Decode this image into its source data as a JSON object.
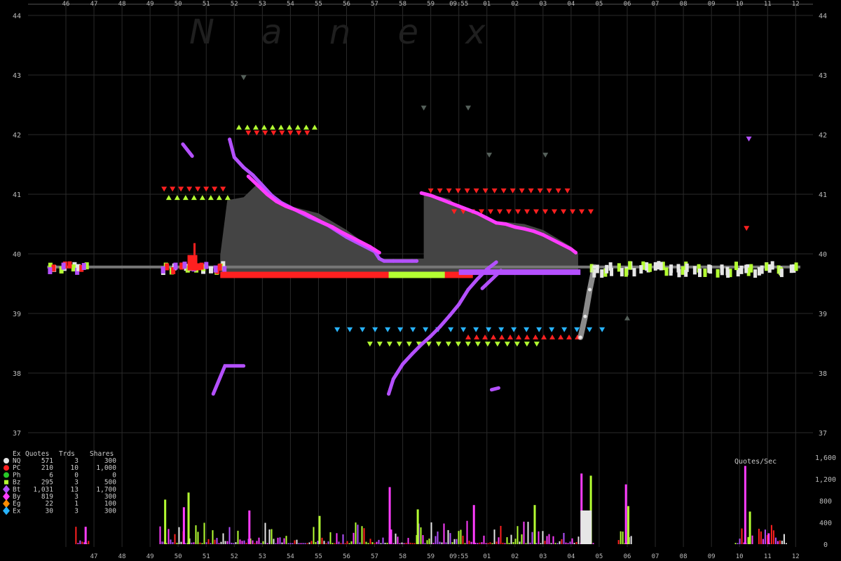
{
  "watermark": "N a n e x",
  "colors": {
    "background": "#000000",
    "grid": "#2a2a2a",
    "shading": "#444444",
    "NQ": "#e6e6e6",
    "PC": "#ff2020",
    "Ph": "#28c828",
    "Bz": "#b4ff32",
    "Bt": "#b450ff",
    "By": "#ff3cff",
    "Eg": "#ff8c00",
    "Ex": "#28b4ff",
    "ref": "#55605a"
  },
  "legend": {
    "headers": [
      "Ex",
      "Quotes",
      "Trds",
      "Shares"
    ],
    "rows": [
      {
        "ex": "NQ",
        "quotes": "571",
        "trds": "3",
        "shares": "300",
        "color": "#e6e6e6",
        "shape": "circle"
      },
      {
        "ex": "PC",
        "quotes": "210",
        "trds": "10",
        "shares": "1,000",
        "color": "#ff2020",
        "shape": "circle"
      },
      {
        "ex": "Ph",
        "quotes": "6",
        "trds": "0",
        "shares": "0",
        "color": "#28c828",
        "shape": "circle"
      },
      {
        "ex": "Bz",
        "quotes": "295",
        "trds": "3",
        "shares": "500",
        "color": "#b4ff32",
        "shape": "square"
      },
      {
        "ex": "Bt",
        "quotes": "1,031",
        "trds": "13",
        "shares": "1,700",
        "color": "#b450ff",
        "shape": "diamond"
      },
      {
        "ex": "By",
        "quotes": "819",
        "trds": "3",
        "shares": "300",
        "color": "#ff3cff",
        "shape": "diamond"
      },
      {
        "ex": "Eg",
        "quotes": "22",
        "trds": "1",
        "shares": "100",
        "color": "#ff8c00",
        "shape": "diamond"
      },
      {
        "ex": "Ex",
        "quotes": "30",
        "trds": "3",
        "shares": "300",
        "color": "#28b4ff",
        "shape": "diamond"
      }
    ]
  },
  "chart_data": [
    {
      "type": "line",
      "title": "",
      "xlabel": "",
      "ylabel": "",
      "ylim": [
        37,
        44
      ],
      "grid": true,
      "top_x_ticks": [
        "46",
        "47",
        "48",
        "49",
        "50",
        "51",
        "52",
        "53",
        "54",
        "55",
        "56",
        "57",
        "58",
        "59",
        "09:55",
        "01",
        "02",
        "03",
        "04",
        "05",
        "06",
        "07",
        "08",
        "09",
        "10",
        "11",
        "12"
      ],
      "y_ticks": [
        "44",
        "43",
        "42",
        "41",
        "40",
        "39",
        "38",
        "37"
      ],
      "series": [
        {
          "name": "Bt",
          "x": [
            "51:50",
            "52:00",
            "52:20",
            "52:40",
            "53:00",
            "53:20",
            "53:40",
            "54:00",
            "54:20",
            "54:40",
            "55:00",
            "55:20",
            "55:40",
            "56:00",
            "56:20",
            "56:40",
            "57:00",
            "57:10",
            "57:20",
            "57:40",
            "58:00",
            "58:20",
            "58:30"
          ],
          "y": [
            41.92,
            41.62,
            41.45,
            41.32,
            41.15,
            40.98,
            40.86,
            40.78,
            40.7,
            40.62,
            40.55,
            40.48,
            40.38,
            40.28,
            40.2,
            40.12,
            40.04,
            39.92,
            39.88,
            39.88,
            39.88,
            39.88,
            39.88
          ]
        },
        {
          "name": "By",
          "x": [
            "52:30",
            "52:50",
            "53:10",
            "53:30",
            "53:50",
            "54:10",
            "54:30",
            "54:50",
            "55:10",
            "55:30",
            "55:50",
            "56:10",
            "56:30",
            "56:50",
            "57:00",
            "57:10"
          ],
          "y": [
            41.3,
            41.15,
            41.0,
            40.88,
            40.8,
            40.74,
            40.68,
            40.6,
            40.52,
            40.45,
            40.36,
            40.28,
            40.2,
            40.12,
            40.07,
            40.02
          ]
        },
        {
          "name": "Bt",
          "x": [
            "57:30",
            "57:40",
            "58:00",
            "58:20",
            "58:40",
            "59:00",
            "59:20",
            "59:40",
            "09:55",
            "00:20",
            "00:40",
            "01:00",
            "01:20"
          ],
          "y": [
            37.65,
            37.9,
            38.15,
            38.32,
            38.48,
            38.62,
            38.78,
            38.96,
            39.15,
            39.4,
            39.58,
            39.74,
            39.86
          ]
        },
        {
          "name": "By",
          "x": [
            "58:40",
            "59:00",
            "59:20",
            "59:40",
            "09:55",
            "00:20",
            "00:40",
            "01:00",
            "01:20",
            "01:40",
            "02:00",
            "02:20",
            "02:40",
            "03:00",
            "03:20",
            "03:40",
            "04:00",
            "04:10"
          ],
          "y": [
            41.02,
            40.98,
            40.92,
            40.86,
            40.8,
            40.74,
            40.68,
            40.6,
            40.52,
            40.5,
            40.45,
            40.42,
            40.38,
            40.32,
            40.24,
            40.16,
            40.08,
            40.02
          ]
        },
        {
          "name": "NQ",
          "x": [
            "04:20",
            "04:30",
            "04:40",
            "04:50"
          ],
          "y": [
            38.6,
            38.95,
            39.4,
            39.78
          ]
        }
      ]
    },
    {
      "type": "bar",
      "title": "Quotes/Sec",
      "ylim": [
        0,
        1600
      ],
      "y_ticks": [
        "0",
        "400",
        "800",
        "1,200",
        "1,600"
      ],
      "bottom_x_ticks": [
        "47",
        "48",
        "49",
        "50",
        "51",
        "52",
        "53",
        "54",
        "55",
        "56",
        "57",
        "58",
        "59",
        "09:55",
        "01",
        "02",
        "03",
        "04",
        "05",
        "06",
        "07",
        "08",
        "09",
        "10",
        "11",
        "12"
      ],
      "x": [
        "46:40",
        "49:30",
        "50:10",
        "50:20",
        "52:30",
        "55:00",
        "57:30",
        "58:30",
        "00:30",
        "02:40",
        "04:20",
        "04:40",
        "05:55",
        "06:00",
        "10:10",
        "10:20",
        "11:00"
      ],
      "values": [
        320,
        820,
        680,
        950,
        620,
        520,
        1050,
        640,
        720,
        720,
        1300,
        1260,
        1100,
        700,
        1440,
        600,
        200
      ]
    }
  ]
}
